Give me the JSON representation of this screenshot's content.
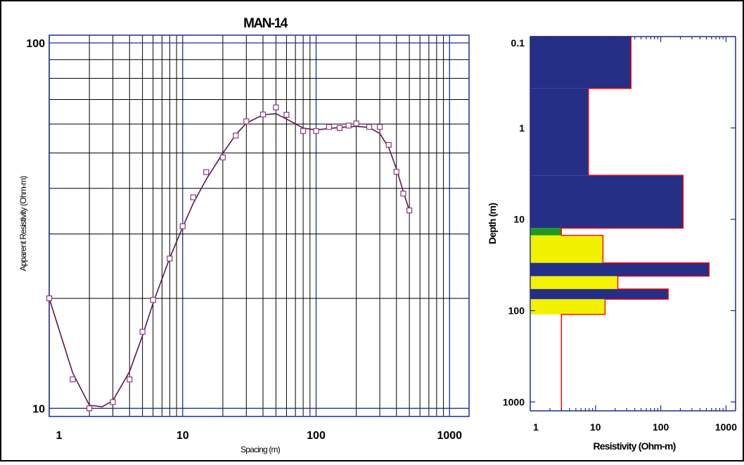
{
  "colors": {
    "frame": "#000000",
    "axis": "#1f2f8f",
    "grid": "#000000",
    "curve": "#5a1a4a",
    "points": "#8a3a7a",
    "model_outline": "#ff0000",
    "layer_blue": "#252f86",
    "layer_yellow": "#f2f200",
    "layer_green": "#1e9b1e",
    "title": "#27318a"
  },
  "chart_data": [
    {
      "type": "scatter",
      "title": "MAN-14",
      "xlabel": "Spacing (m)",
      "ylabel": "Apparent Resistivity (Ohm-m)",
      "x_scale": "log",
      "y_scale": "log",
      "xlim": [
        1,
        1400
      ],
      "ylim": [
        9.5,
        105
      ],
      "grid": true,
      "x_ticks": [
        {
          "v": 1,
          "label": "1"
        },
        {
          "v": 10,
          "label": "10"
        },
        {
          "v": 100,
          "label": "100"
        },
        {
          "v": 1000,
          "label": "1000"
        }
      ],
      "y_ticks": [
        {
          "v": 10,
          "label": "10"
        },
        {
          "v": 100,
          "label": "100"
        }
      ],
      "series": [
        {
          "kind": "points",
          "x": [
            1,
            1.5,
            2,
            3,
            4,
            5,
            6,
            8,
            10,
            12,
            15,
            20,
            25,
            30,
            40,
            50,
            60,
            80,
            100,
            125,
            150,
            175,
            200,
            250,
            300,
            350,
            400,
            450,
            500
          ],
          "y": [
            20,
            12,
            10,
            10.4,
            12,
            16.2,
            19.8,
            25.7,
            31.5,
            37.8,
            44.3,
            48.6,
            55.8,
            61,
            63.7,
            66.6,
            63.6,
            57.4,
            57.4,
            58.9,
            58.5,
            59.4,
            60.2,
            58.9,
            58.9,
            52.6,
            44.4,
            38.7,
            34.8
          ]
        },
        {
          "kind": "curve",
          "x": [
            1,
            1.5,
            2,
            2.5,
            3,
            4,
            5,
            6,
            8,
            10,
            12,
            15,
            20,
            25,
            30,
            40,
            50,
            60,
            80,
            100,
            125,
            150,
            200,
            250,
            300,
            350,
            400,
            450,
            500
          ],
          "y": [
            20,
            12.5,
            10.2,
            10.1,
            10.5,
            12.6,
            15.8,
            19.4,
            25.8,
            31.3,
            36.4,
            42.3,
            49.9,
            56.1,
            60.3,
            63.6,
            64,
            61.9,
            58.5,
            57.8,
            58.3,
            58.7,
            59.1,
            58.7,
            56.5,
            51.7,
            45.2,
            39.2,
            34.8
          ]
        }
      ]
    },
    {
      "type": "area",
      "xlabel": "Resistivity (Ohm-m)",
      "ylabel": "Depth (m)",
      "x_scale": "log",
      "y_scale": "log",
      "y_inverted": true,
      "xlim": [
        1,
        1400
      ],
      "ylim": [
        0.1,
        1250
      ],
      "grid": false,
      "x_ticks": [
        {
          "v": 1,
          "label": "1"
        },
        {
          "v": 10,
          "label": "10"
        },
        {
          "v": 100,
          "label": "100"
        },
        {
          "v": 1000,
          "label": "1000"
        }
      ],
      "y_ticks": [
        {
          "v": 0.1,
          "label": "0.1"
        },
        {
          "v": 1,
          "label": "1"
        },
        {
          "v": 10,
          "label": "10"
        },
        {
          "v": 100,
          "label": "100"
        },
        {
          "v": 1000,
          "label": "1000"
        }
      ],
      "layers": [
        {
          "top": 0.1,
          "bottom": 0.37,
          "resistivity": 35,
          "fill": "blue"
        },
        {
          "top": 0.37,
          "bottom": 3.3,
          "resistivity": 7.8,
          "fill": "blue"
        },
        {
          "top": 3.3,
          "bottom": 12.5,
          "resistivity": 220,
          "fill": "blue"
        },
        {
          "top": 12.5,
          "bottom": 15,
          "resistivity": 3,
          "fill": "green"
        },
        {
          "top": 15,
          "bottom": 30,
          "resistivity": 13,
          "fill": "yellow"
        },
        {
          "top": 30,
          "bottom": 42,
          "resistivity": 550,
          "fill": "blue"
        },
        {
          "top": 42,
          "bottom": 58,
          "resistivity": 22,
          "fill": "yellow"
        },
        {
          "top": 58,
          "bottom": 75,
          "resistivity": 130,
          "fill": "blue"
        },
        {
          "top": 75,
          "bottom": 110,
          "resistivity": 14,
          "fill": "yellow"
        },
        {
          "top": 110,
          "bottom": 1250,
          "resistivity": 3,
          "fill": "none"
        }
      ]
    }
  ]
}
